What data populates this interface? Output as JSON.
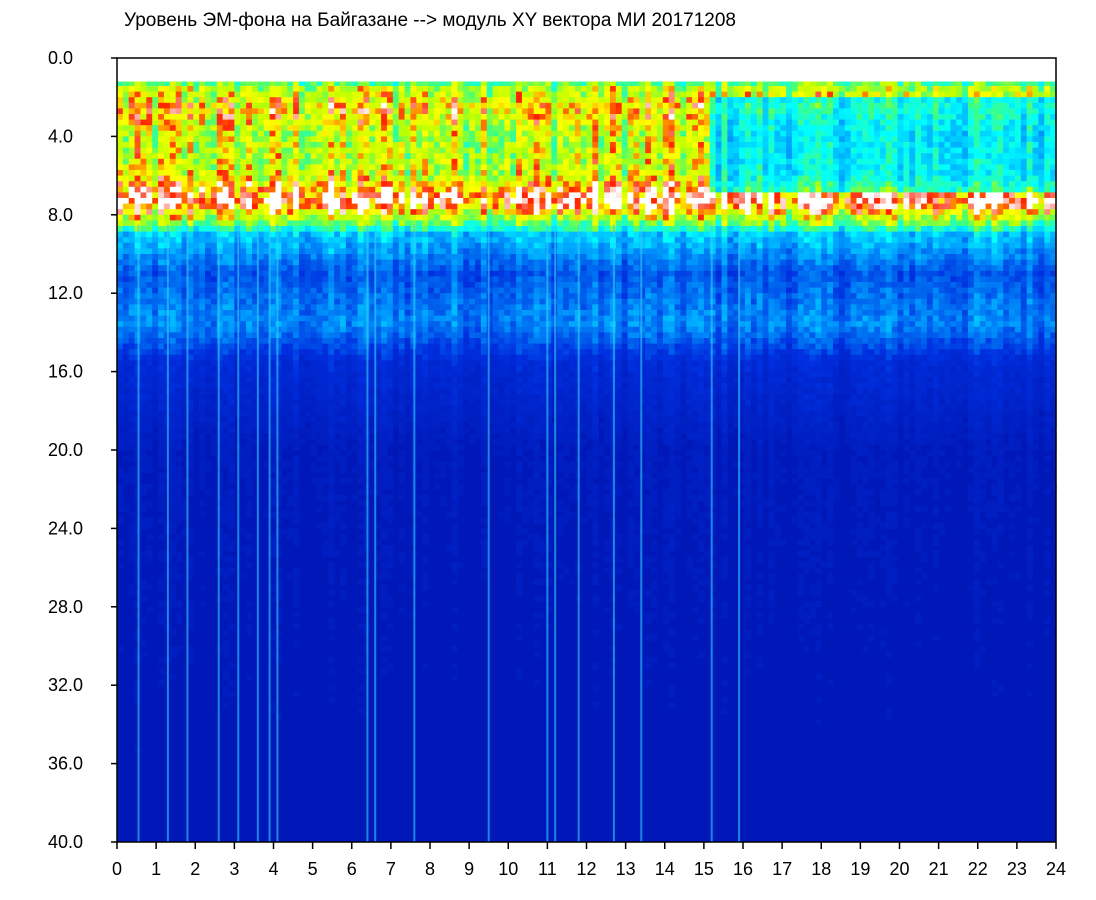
{
  "chart_data": {
    "type": "heatmap",
    "title": "Уровень ЭМ-фона на Байгазане  --> модуль XY вектора МИ  20171208",
    "xlabel": "",
    "ylabel": "",
    "x_range": [
      0,
      24
    ],
    "y_range": [
      0.0,
      40.0
    ],
    "y_inverted": true,
    "x_ticks": [
      "0",
      "1",
      "2",
      "3",
      "4",
      "5",
      "6",
      "7",
      "8",
      "9",
      "10",
      "11",
      "12",
      "13",
      "14",
      "15",
      "16",
      "17",
      "18",
      "19",
      "20",
      "21",
      "22",
      "23",
      "24"
    ],
    "y_ticks": [
      "0.0",
      "4.0",
      "8.0",
      "12.0",
      "16.0",
      "20.0",
      "24.0",
      "28.0",
      "32.0",
      "36.0",
      "40.0"
    ],
    "colorscale": [
      "#0010a8",
      "#0030e0",
      "#00a0ff",
      "#00ffff",
      "#40ff80",
      "#c0ff00",
      "#ffff00",
      "#ff2000",
      "#ffffff"
    ],
    "intensity_profile_by_y": [
      {
        "y": 0.0,
        "level": 0.0
      },
      {
        "y": 1.5,
        "level": 0.6
      },
      {
        "y": 2.5,
        "level": 0.75
      },
      {
        "y": 4.0,
        "level": 0.62
      },
      {
        "y": 6.0,
        "level": 0.66
      },
      {
        "y": 7.3,
        "level": 0.96
      },
      {
        "y": 8.2,
        "level": 0.62
      },
      {
        "y": 9.0,
        "level": 0.3
      },
      {
        "y": 11.0,
        "level": 0.16
      },
      {
        "y": 13.5,
        "level": 0.22
      },
      {
        "y": 15.5,
        "level": 0.1
      },
      {
        "y": 20.0,
        "level": 0.05
      },
      {
        "y": 40.0,
        "level": 0.03
      }
    ],
    "daytime_damping": {
      "from_x": 15.2,
      "to_x": 24,
      "factor": 0.55
    },
    "vertical_streaks_x": [
      0.55,
      1.3,
      1.8,
      2.6,
      3.1,
      3.6,
      3.9,
      4.1,
      6.4,
      6.6,
      7.6,
      9.5,
      11.0,
      11.2,
      11.8,
      12.7,
      13.4,
      15.2,
      15.9
    ]
  }
}
